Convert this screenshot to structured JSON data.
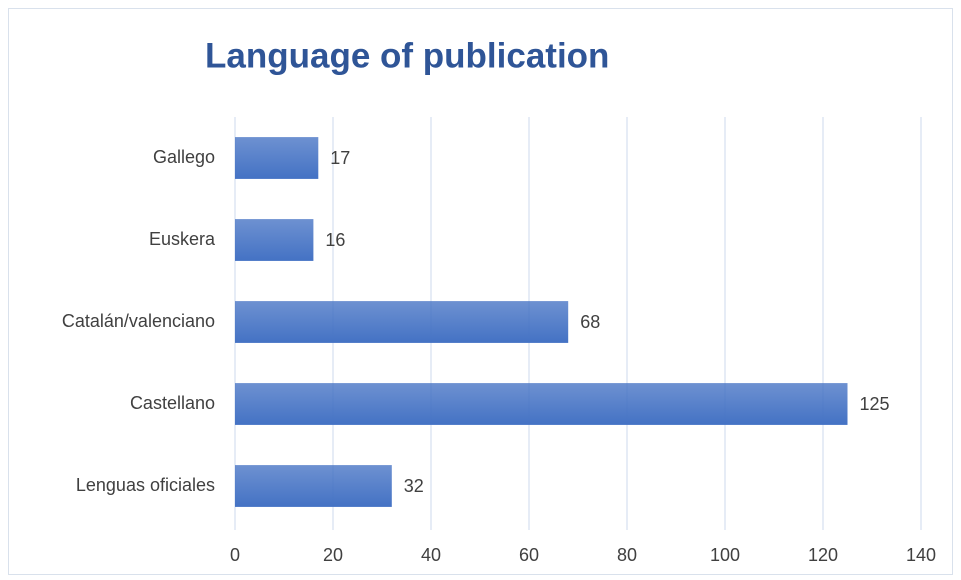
{
  "chart_data": {
    "type": "bar",
    "orientation": "horizontal",
    "title": "Language of publication",
    "categories": [
      "Gallego",
      "Euskera",
      "Catalán/valenciano",
      "Castellano",
      "Lenguas oficiales"
    ],
    "values": [
      17,
      16,
      68,
      125,
      32
    ],
    "color": "#4472c4",
    "xlim": [
      0,
      140
    ],
    "xticks": [
      0,
      20,
      40,
      60,
      80,
      100,
      120,
      140
    ],
    "grid": true
  }
}
